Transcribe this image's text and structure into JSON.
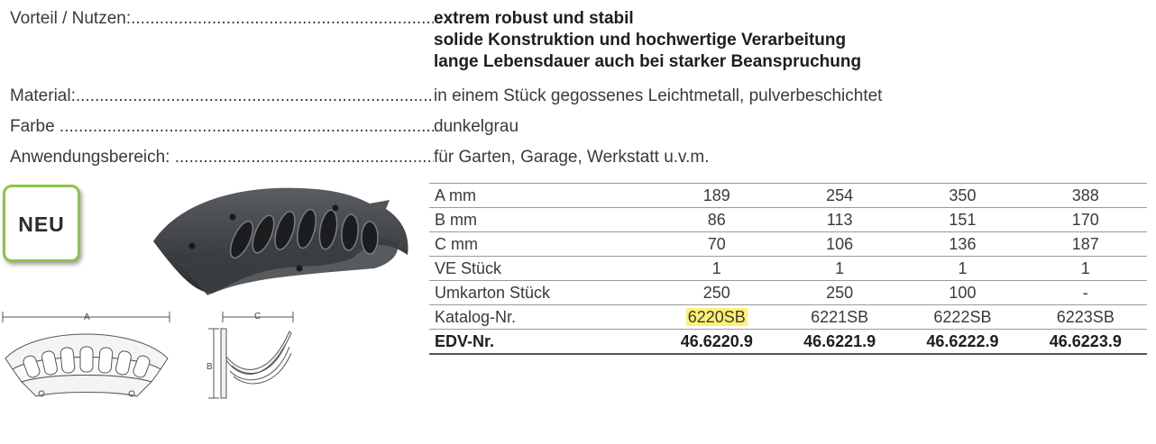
{
  "specs": [
    {
      "label": "Vorteil / Nutzen:",
      "values": [
        "extrem robust und stabil",
        "solide Konstruktion und hochwertige Verarbeitung",
        "lange Lebensdauer auch bei starker Beanspruchung"
      ],
      "bold": true
    },
    {
      "label": "Material:",
      "values": [
        "in einem Stück gegossenes Leichtmetall, pulverbeschichtet"
      ],
      "bold": false
    },
    {
      "label": "Farbe",
      "values": [
        "dunkelgrau"
      ],
      "bold": false
    },
    {
      "label": "Anwendungsbereich:",
      "values": [
        "für Garten, Garage, Werkstatt u.v.m."
      ],
      "bold": false
    }
  ],
  "badge": {
    "label": "NEU",
    "color": "#8dc24a"
  },
  "drawing": {
    "dim_a": "A",
    "dim_b": "B",
    "dim_c": "C"
  },
  "table": {
    "rows": [
      {
        "label": "A mm",
        "cells": [
          "189",
          "254",
          "350",
          "388"
        ]
      },
      {
        "label": "B mm",
        "cells": [
          "86",
          "113",
          "151",
          "170"
        ]
      },
      {
        "label": "C mm",
        "cells": [
          "70",
          "106",
          "136",
          "187"
        ]
      },
      {
        "label": "VE Stück",
        "cells": [
          "1",
          "1",
          "1",
          "1"
        ]
      },
      {
        "label": "Umkarton Stück",
        "cells": [
          "250",
          "250",
          "100",
          "-"
        ]
      },
      {
        "label": "Katalog-Nr.",
        "cells": [
          "6220SB",
          "6221SB",
          "6222SB",
          "6223SB"
        ],
        "highlight_index": 0
      },
      {
        "label": "EDV-Nr.",
        "cells": [
          "46.6220.9",
          "46.6221.9",
          "46.6222.9",
          "46.6223.9"
        ],
        "bold": true
      }
    ],
    "highlight_color": "#fff176"
  }
}
